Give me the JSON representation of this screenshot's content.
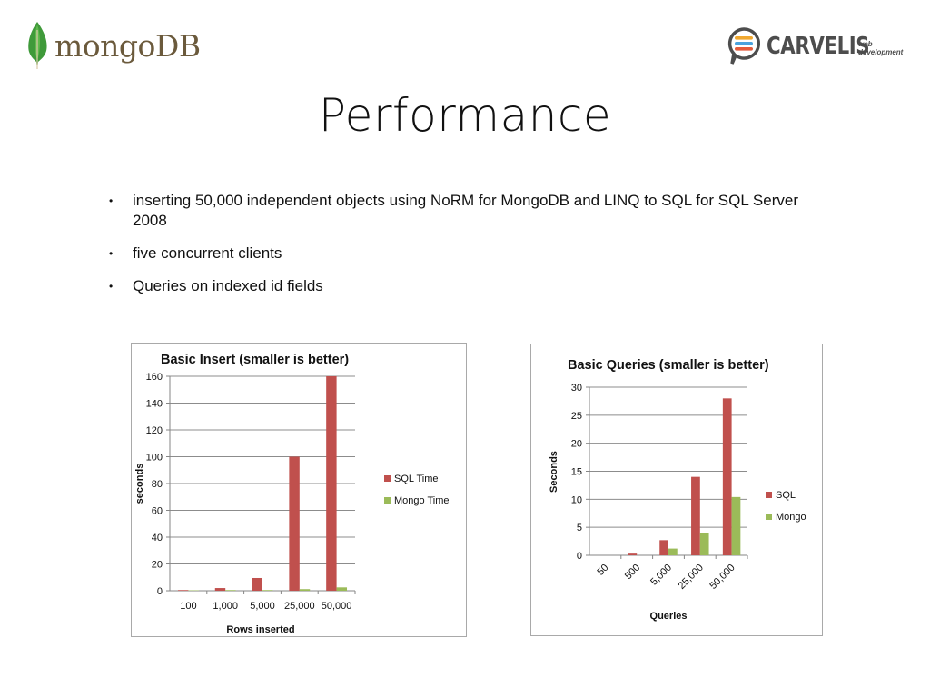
{
  "header": {
    "mongo_logo_text": "mongoDB",
    "carvelis_logo_text": "CARVELIS",
    "carvelis_sub_line1": "web",
    "carvelis_sub_line2": "development"
  },
  "title": "Performance",
  "bullets": [
    "inserting 50,000 independent objects using NoRM for MongoDB and LINQ to SQL for SQL Server 2008",
    "five concurrent clients",
    "Queries on indexed id fields"
  ],
  "colors": {
    "sql": "#c0504d",
    "mongo": "#9bbb59",
    "grid": "#8c8c8c",
    "axis": "#868686"
  },
  "chart_data": [
    {
      "type": "bar",
      "title": "Basic Insert (smaller is better)",
      "xlabel": "Rows inserted",
      "ylabel": "seconds",
      "categories": [
        "100",
        "1,000",
        "5,000",
        "25,000",
        "50,000"
      ],
      "series": [
        {
          "name": "SQL Time",
          "values": [
            0.5,
            2,
            9.5,
            100,
            160
          ]
        },
        {
          "name": "Mongo Time",
          "values": [
            0.3,
            0.5,
            0.5,
            1.2,
            2.5
          ]
        }
      ],
      "ylim": [
        0,
        160
      ],
      "yticks": [
        "0",
        "20",
        "40",
        "60",
        "80",
        "100",
        "120",
        "140",
        "160"
      ],
      "grid": true,
      "legend": "right",
      "rotate_x": false
    },
    {
      "type": "bar",
      "title": "Basic Queries (smaller is better)",
      "xlabel": "Queries",
      "ylabel": "Seconds",
      "categories": [
        "50",
        "500",
        "5,000",
        "25,000",
        "50,000"
      ],
      "series": [
        {
          "name": "SQL",
          "values": [
            0,
            0.3,
            2.7,
            14,
            28
          ]
        },
        {
          "name": "Mongo",
          "values": [
            0,
            0,
            1.2,
            4,
            10.4
          ]
        }
      ],
      "ylim": [
        0,
        30
      ],
      "yticks": [
        "0",
        "5",
        "10",
        "15",
        "20",
        "25",
        "30"
      ],
      "grid": true,
      "legend": "right",
      "rotate_x": true
    }
  ]
}
